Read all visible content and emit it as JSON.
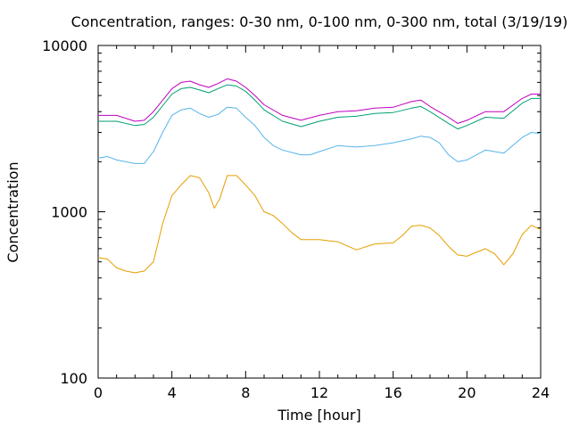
{
  "chart_data": {
    "type": "line",
    "title": "Concentration, ranges: 0-30 nm, 0-100 nm, 0-300 nm, total (3/19/19)",
    "xlabel": "Time [hour]",
    "ylabel": "Concentration",
    "xlim": [
      0,
      24
    ],
    "ylim": [
      100,
      10000
    ],
    "yscale": "log",
    "xticks": [
      0,
      4,
      8,
      12,
      16,
      20,
      24
    ],
    "xtick_labels": [
      "0",
      "4",
      "8",
      "12",
      "16",
      "20",
      "24"
    ],
    "yticks": [
      100,
      1000,
      10000
    ],
    "ytick_labels": [
      "100",
      "1000",
      "10000"
    ],
    "grid": false,
    "legend": "none",
    "series": [
      {
        "color": "#c000c0",
        "x": [
          0,
          1,
          2,
          2.5,
          3,
          4,
          4.5,
          5,
          5.5,
          6,
          6.5,
          7,
          7.5,
          8,
          8.5,
          9,
          10,
          11,
          12,
          13,
          14,
          15,
          16,
          17,
          17.5,
          18,
          19,
          19.5,
          20,
          21,
          22,
          23,
          23.5,
          24
        ],
        "y": [
          3800,
          3800,
          3500,
          3550,
          4000,
          5500,
          6000,
          6100,
          5800,
          5600,
          5900,
          6300,
          6100,
          5600,
          5000,
          4400,
          3800,
          3550,
          3800,
          4000,
          4050,
          4200,
          4250,
          4600,
          4700,
          4300,
          3700,
          3400,
          3550,
          4000,
          4000,
          4800,
          5100,
          5100
        ]
      },
      {
        "color": "#009e73",
        "x": [
          0,
          1,
          2,
          2.5,
          3,
          4,
          4.5,
          5,
          5.5,
          6,
          6.5,
          7,
          7.5,
          8,
          8.5,
          9,
          10,
          11,
          12,
          13,
          14,
          15,
          16,
          17,
          17.5,
          18,
          19,
          19.5,
          20,
          21,
          22,
          23,
          23.5,
          24
        ],
        "y": [
          3500,
          3500,
          3300,
          3350,
          3700,
          5100,
          5500,
          5600,
          5400,
          5200,
          5500,
          5800,
          5700,
          5300,
          4700,
          4100,
          3500,
          3250,
          3500,
          3700,
          3750,
          3900,
          3950,
          4200,
          4300,
          4000,
          3400,
          3150,
          3300,
          3700,
          3650,
          4500,
          4800,
          4800
        ]
      },
      {
        "color": "#56b4e9",
        "x": [
          0,
          0.5,
          1,
          1.5,
          2,
          2.5,
          3,
          3.5,
          4,
          4.5,
          5,
          5.5,
          6,
          6.5,
          7,
          7.5,
          8,
          8.5,
          9,
          9.5,
          10,
          11,
          11.5,
          12,
          13,
          14,
          15,
          16,
          17,
          17.5,
          18,
          18.5,
          19,
          19.5,
          20,
          21,
          21.5,
          22,
          23,
          23.5,
          24
        ],
        "y": [
          2100,
          2150,
          2050,
          2000,
          1950,
          1950,
          2300,
          3000,
          3800,
          4100,
          4200,
          3900,
          3700,
          3850,
          4250,
          4200,
          3700,
          3300,
          2800,
          2500,
          2350,
          2200,
          2200,
          2300,
          2500,
          2450,
          2500,
          2600,
          2750,
          2850,
          2800,
          2600,
          2200,
          2000,
          2050,
          2350,
          2300,
          2250,
          2800,
          3000,
          2950
        ]
      },
      {
        "color": "#e69f00",
        "x": [
          0,
          0.5,
          1,
          1.5,
          2,
          2.5,
          3,
          3.5,
          4,
          4.5,
          5,
          5.5,
          6,
          6.3,
          6.6,
          7,
          7.5,
          8,
          8.5,
          9,
          9.5,
          10,
          10.5,
          11,
          12,
          13,
          14,
          15,
          16,
          16.5,
          17,
          17.5,
          18,
          18.5,
          19,
          19.5,
          20,
          21,
          21.5,
          22,
          22.5,
          23,
          23.5,
          24
        ],
        "y": [
          530,
          520,
          460,
          440,
          430,
          440,
          500,
          850,
          1250,
          1450,
          1650,
          1600,
          1300,
          1050,
          1200,
          1650,
          1650,
          1450,
          1250,
          1000,
          950,
          850,
          750,
          680,
          680,
          660,
          590,
          640,
          650,
          720,
          820,
          830,
          800,
          720,
          620,
          550,
          540,
          600,
          560,
          480,
          560,
          730,
          830,
          780
        ]
      }
    ]
  }
}
